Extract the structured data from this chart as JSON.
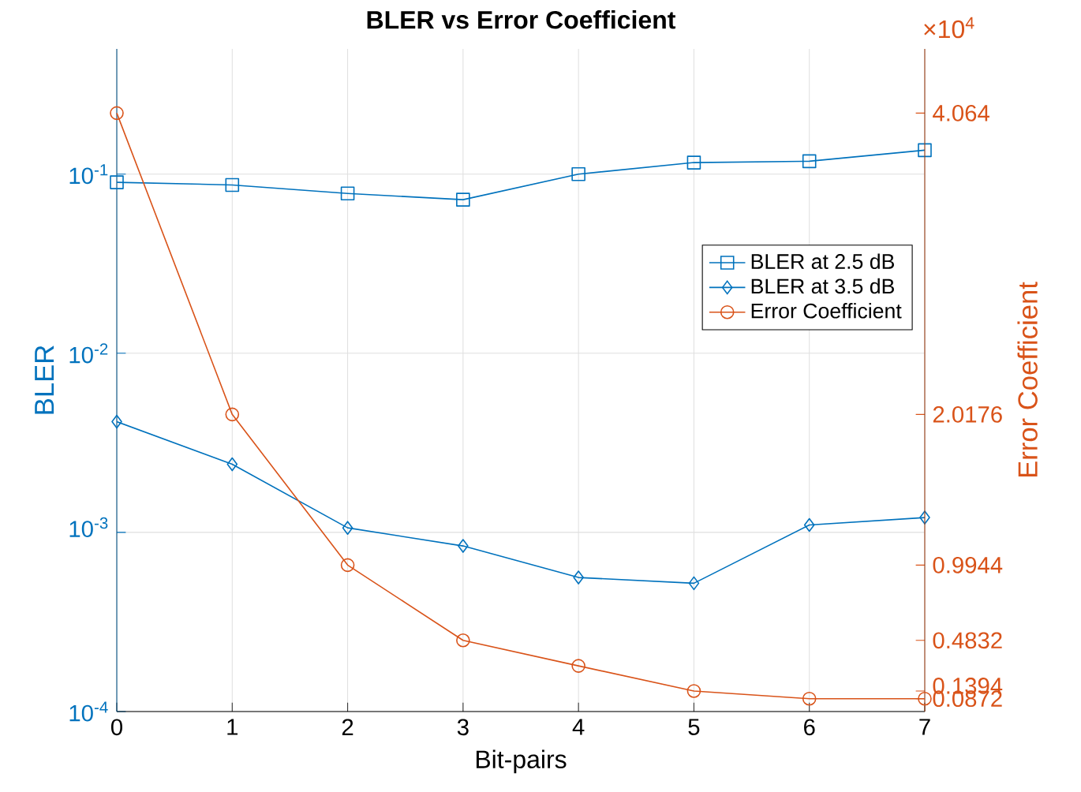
{
  "chart_data": {
    "type": "line",
    "title": "BLER vs Error Coefficient",
    "xlabel": "Bit-pairs",
    "ylabel": "BLER",
    "y2label": "Error Coefficient",
    "x": [
      0,
      1,
      2,
      3,
      4,
      5,
      6,
      7
    ],
    "xlim": [
      0,
      7
    ],
    "xticks": [
      0,
      1,
      2,
      3,
      4,
      5,
      6,
      7
    ],
    "ylim": [
      0.0001,
      0.5
    ],
    "yticks": [
      {
        "value": 0.0001,
        "label": "10$^{-4}$"
      },
      {
        "value": 0.001,
        "label": "10$^{-3}$"
      },
      {
        "value": 0.01,
        "label": "10$^{-2}$"
      },
      {
        "value": 0.1,
        "label": "10$^{-1}$"
      }
    ],
    "y2lim": [
      0,
      4.5
    ],
    "y2ticks": [
      0.0872,
      0.1394,
      0.4832,
      0.9944,
      2.0176,
      4.064
    ],
    "log": "y",
    "grid": true,
    "legend": "right",
    "annotations": [
      "×10$^{4}$"
    ],
    "series": [
      {
        "name": "BLER at 2.5 dB",
        "color": "#0072bd",
        "marker": "square",
        "values": [
          0.09,
          0.087,
          0.078,
          0.072,
          0.1,
          0.116,
          0.118,
          0.136
        ]
      },
      {
        "name": "BLER at 3.5 dB",
        "color": "#0072bd",
        "marker": "diamond",
        "values": [
          0.00415,
          0.0024,
          0.00106,
          0.00084,
          0.00056,
          0.00052,
          0.0011,
          0.00121
        ]
      },
      {
        "name": "Error Coefficient",
        "color": "#d95319",
        "marker": "circle",
        "axis": "y2",
        "values": [
          4.064,
          2.0176,
          0.9944,
          0.4832,
          0.31,
          0.1394,
          0.0872,
          0.0872
        ]
      }
    ]
  }
}
